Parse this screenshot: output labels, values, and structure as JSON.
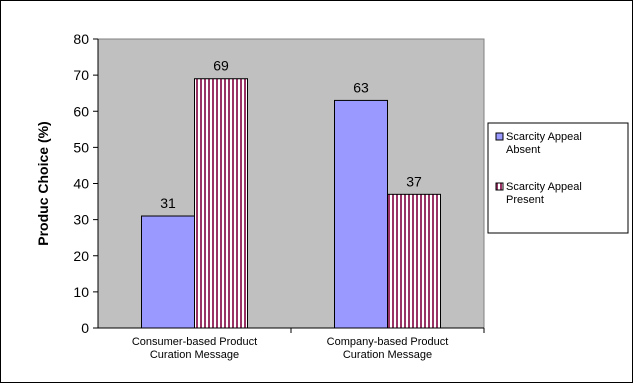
{
  "chart_data": {
    "type": "bar",
    "title": "",
    "ylabel": "Produc Choice (%)",
    "xlabel": "",
    "categories": [
      [
        "Consumer-based Product",
        "Curation Message"
      ],
      [
        "Company-based Product",
        "Curation Message"
      ]
    ],
    "series": [
      {
        "name": [
          "Scarcity Appeal",
          "Absent"
        ],
        "values": [
          31,
          63
        ],
        "color": "#9999ff",
        "pattern": "solid"
      },
      {
        "name": [
          "Scarcity Appeal",
          "Present"
        ],
        "values": [
          69,
          37
        ],
        "color": "#993366",
        "pattern": "vertical-stripes"
      }
    ],
    "ylim": [
      0,
      80
    ],
    "yticks": [
      0,
      10,
      20,
      30,
      40,
      50,
      60,
      70,
      80
    ],
    "grid": false,
    "plot_background": "#c0c0c0",
    "legend": "right",
    "data_labels": true
  }
}
